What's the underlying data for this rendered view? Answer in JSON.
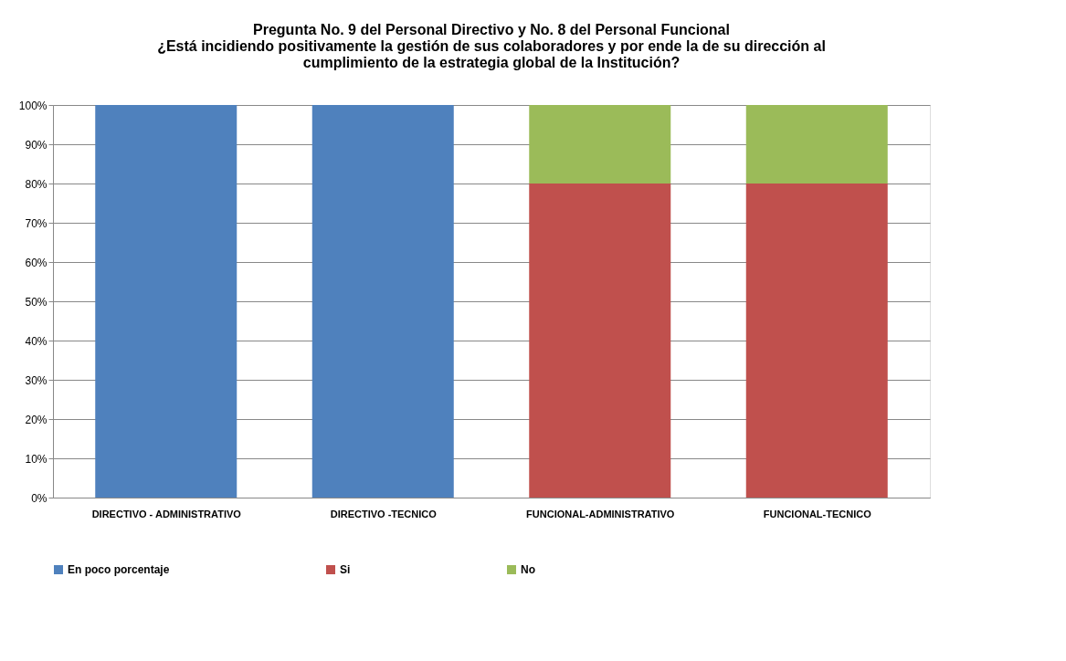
{
  "chart_data": {
    "type": "bar",
    "stacked": true,
    "title": [
      "Pregunta No. 9 del Personal Directivo y No. 8 del Personal Funcional",
      "¿Está incidiendo positivamente la gestión de sus colaboradores y por ende la de su dirección al",
      "cumplimiento de la estrategia global de la Institución?"
    ],
    "categories": [
      "DIRECTIVO - ADMINISTRATIVO",
      "DIRECTIVO -TECNICO",
      "FUNCIONAL-ADMINISTRATIVO",
      "FUNCIONAL-TECNICO"
    ],
    "series": [
      {
        "name": "En poco porcentaje",
        "color": "#4f81bd",
        "values": [
          100,
          100,
          null,
          null
        ]
      },
      {
        "name": "Si",
        "color": "#c0504d",
        "values": [
          null,
          null,
          80,
          80
        ]
      },
      {
        "name": "No",
        "color": "#9bbb59",
        "values": [
          null,
          null,
          20,
          20
        ]
      }
    ],
    "ylim": [
      0,
      100
    ],
    "yticks": [
      {
        "value": 0,
        "label": "0%"
      },
      {
        "value": 10,
        "label": "10%"
      },
      {
        "value": 20,
        "label": "20%"
      },
      {
        "value": 30,
        "label": "30%"
      },
      {
        "value": 40,
        "label": "40%"
      },
      {
        "value": 50,
        "label": "50%"
      },
      {
        "value": 60,
        "label": "60%"
      },
      {
        "value": 70,
        "label": "70%"
      },
      {
        "value": 80,
        "label": "80%"
      },
      {
        "value": 90,
        "label": "90%"
      },
      {
        "value": 100,
        "label": "100%"
      }
    ],
    "grid": "y",
    "legend": "bottom"
  }
}
